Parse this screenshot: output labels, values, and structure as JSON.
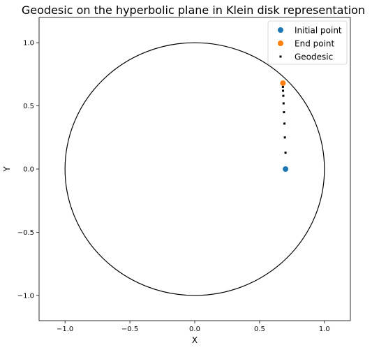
{
  "chart_data": {
    "type": "scatter",
    "title": "Geodesic on the hyperbolic plane in Klein disk representation",
    "xlabel": "X",
    "ylabel": "Y",
    "xlim": [
      -1.2,
      1.2
    ],
    "ylim": [
      -1.2,
      1.2
    ],
    "grid": false,
    "legend_position": "top-right",
    "boundary_circle": {
      "center": [
        0,
        0
      ],
      "radius": 1,
      "color": "#000000"
    },
    "xticks": [
      {
        "value": -1.0,
        "label": "−1.0"
      },
      {
        "value": -0.5,
        "label": "−0.5"
      },
      {
        "value": 0.0,
        "label": "0.0"
      },
      {
        "value": 0.5,
        "label": "0.5"
      },
      {
        "value": 1.0,
        "label": "1.0"
      }
    ],
    "yticks": [
      {
        "value": -1.0,
        "label": "−1.0"
      },
      {
        "value": -0.5,
        "label": "−0.5"
      },
      {
        "value": 0.0,
        "label": "0.0"
      },
      {
        "value": 0.5,
        "label": "0.5"
      },
      {
        "value": 1.0,
        "label": "1.0"
      }
    ],
    "series": [
      {
        "name": "Initial point",
        "color": "#1f77b4",
        "marker": "circle",
        "points": [
          [
            0.7,
            0.0
          ]
        ]
      },
      {
        "name": "End point",
        "color": "#ff7f0e",
        "marker": "circle",
        "points": [
          [
            0.68,
            0.68
          ]
        ]
      },
      {
        "name": "Geodesic",
        "color": "#000000",
        "marker": "square",
        "points": [
          [
            0.7,
            0.13
          ],
          [
            0.695,
            0.25
          ],
          [
            0.692,
            0.36
          ],
          [
            0.688,
            0.45
          ],
          [
            0.685,
            0.52
          ],
          [
            0.683,
            0.58
          ],
          [
            0.681,
            0.62
          ],
          [
            0.68,
            0.65
          ],
          [
            0.68,
            0.67
          ]
        ]
      }
    ]
  }
}
